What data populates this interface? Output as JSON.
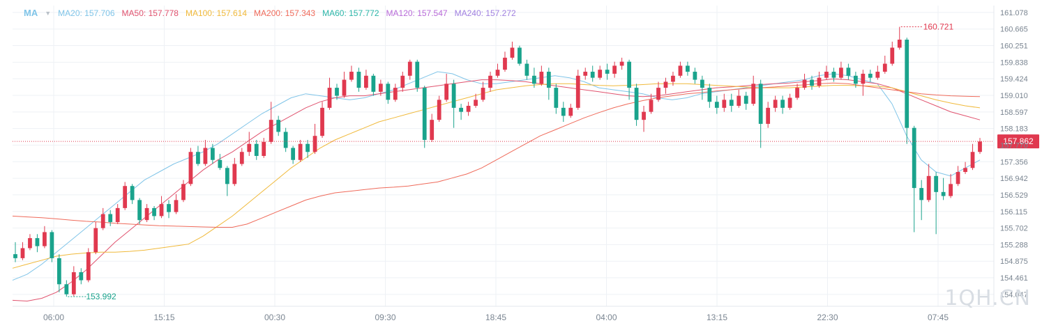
{
  "legend": {
    "title": "MA",
    "items": [
      {
        "label": "MA20: 157.706",
        "color": "#7fc4e8"
      },
      {
        "label": "MA50: 157.778",
        "color": "#e0526e"
      },
      {
        "label": "MA100: 157.614",
        "color": "#f0b93a"
      },
      {
        "label": "MA200: 157.343",
        "color": "#ef6a5a"
      },
      {
        "label": "MA60: 157.772",
        "color": "#2bb6a8"
      },
      {
        "label": "MA120: 157.547",
        "color": "#b86ad8"
      },
      {
        "label": "MA240: 157.272",
        "color": "#a080e0"
      }
    ]
  },
  "watermark": "1QH.CN",
  "chart_data": {
    "type": "candlestick",
    "title": "",
    "ylim": [
      153.75,
      161.25
    ],
    "y_ticks": [
      "161.078",
      "160.665",
      "160.251",
      "159.838",
      "159.424",
      "159.010",
      "158.597",
      "158.183",
      "157.770",
      "157.356",
      "156.942",
      "156.529",
      "156.115",
      "155.702",
      "155.288",
      "154.875",
      "154.461",
      "154.047"
    ],
    "x_ticks": [
      "06:00",
      "15:15",
      "00:30",
      "09:30",
      "18:45",
      "04:00",
      "13:15",
      "22:30",
      "07:45"
    ],
    "current_price": "157.862",
    "high_marker": "160.721",
    "low_marker": "153.992",
    "colors": {
      "up": "#e0394f",
      "down": "#1aa38c",
      "price_line": "#e0394f"
    },
    "candles": [
      [
        155.05,
        154.95,
        155.35,
        154.85
      ],
      [
        154.95,
        155.2,
        155.35,
        154.9
      ],
      [
        155.2,
        155.45,
        155.55,
        155.15
      ],
      [
        155.45,
        155.25,
        155.55,
        155.1
      ],
      [
        155.25,
        155.6,
        155.75,
        155.2
      ],
      [
        155.6,
        154.95,
        155.65,
        154.85
      ],
      [
        154.95,
        154.3,
        155.05,
        154.1
      ],
      [
        154.3,
        154.05,
        154.4,
        153.99
      ],
      [
        154.05,
        154.6,
        154.75,
        154.0
      ],
      [
        154.6,
        154.4,
        154.7,
        154.3
      ],
      [
        154.4,
        155.1,
        155.2,
        154.35
      ],
      [
        155.1,
        155.7,
        155.85,
        155.05
      ],
      [
        155.7,
        156.05,
        156.2,
        155.65
      ],
      [
        156.05,
        155.85,
        156.15,
        155.75
      ],
      [
        155.85,
        156.2,
        156.3,
        155.8
      ],
      [
        156.2,
        156.75,
        156.85,
        156.15
      ],
      [
        156.75,
        156.4,
        156.8,
        156.3
      ],
      [
        156.4,
        155.9,
        156.45,
        155.8
      ],
      [
        155.9,
        156.2,
        156.3,
        155.85
      ],
      [
        156.2,
        156.0,
        156.25,
        155.9
      ],
      [
        156.0,
        156.3,
        156.5,
        155.95
      ],
      [
        156.3,
        156.1,
        156.4,
        155.95
      ],
      [
        156.1,
        156.4,
        156.55,
        156.05
      ],
      [
        156.4,
        156.8,
        156.9,
        156.35
      ],
      [
        156.8,
        157.6,
        157.7,
        156.75
      ],
      [
        157.6,
        157.3,
        157.75,
        157.25
      ],
      [
        157.3,
        157.7,
        157.9,
        157.25
      ],
      [
        157.7,
        157.4,
        157.8,
        157.3
      ],
      [
        157.4,
        157.2,
        157.55,
        157.15
      ],
      [
        157.2,
        156.8,
        157.25,
        156.5
      ],
      [
        156.8,
        157.3,
        157.45,
        156.75
      ],
      [
        157.3,
        157.6,
        157.7,
        157.25
      ],
      [
        157.6,
        157.8,
        158.1,
        157.5
      ],
      [
        157.8,
        157.5,
        157.9,
        157.4
      ],
      [
        157.5,
        157.85,
        157.95,
        157.45
      ],
      [
        157.85,
        158.4,
        158.85,
        157.8
      ],
      [
        158.4,
        158.1,
        158.5,
        158.0
      ],
      [
        158.1,
        157.7,
        158.2,
        157.6
      ],
      [
        157.7,
        157.4,
        157.75,
        157.3
      ],
      [
        157.4,
        157.8,
        157.9,
        157.35
      ],
      [
        157.8,
        157.6,
        157.9,
        157.45
      ],
      [
        157.6,
        158.0,
        158.3,
        157.55
      ],
      [
        158.0,
        158.7,
        158.85,
        157.95
      ],
      [
        158.7,
        159.2,
        159.45,
        158.65
      ],
      [
        159.2,
        159.0,
        159.3,
        158.9
      ],
      [
        159.0,
        159.4,
        159.6,
        158.95
      ],
      [
        159.4,
        159.6,
        159.75,
        159.35
      ],
      [
        159.6,
        159.2,
        159.7,
        159.1
      ],
      [
        159.2,
        159.5,
        159.65,
        159.15
      ],
      [
        159.5,
        159.1,
        159.55,
        159.0
      ],
      [
        159.1,
        159.3,
        159.4,
        159.0
      ],
      [
        159.3,
        158.9,
        159.35,
        158.8
      ],
      [
        158.9,
        159.2,
        159.3,
        158.85
      ],
      [
        159.2,
        159.5,
        159.6,
        159.1
      ],
      [
        159.5,
        159.85,
        159.9,
        159.4
      ],
      [
        159.85,
        159.2,
        159.9,
        159.1
      ],
      [
        159.2,
        157.9,
        159.25,
        157.7
      ],
      [
        157.9,
        158.4,
        158.55,
        157.85
      ],
      [
        158.4,
        158.9,
        159.0,
        158.35
      ],
      [
        158.9,
        159.3,
        159.55,
        158.85
      ],
      [
        159.3,
        158.7,
        159.4,
        158.2
      ],
      [
        158.7,
        158.6,
        158.8,
        158.4
      ],
      [
        158.6,
        158.75,
        158.85,
        158.5
      ],
      [
        158.75,
        158.9,
        159.05,
        158.7
      ],
      [
        158.9,
        159.2,
        159.35,
        158.85
      ],
      [
        159.2,
        159.5,
        159.6,
        159.1
      ],
      [
        159.5,
        159.65,
        159.8,
        159.45
      ],
      [
        159.65,
        159.95,
        160.1,
        159.6
      ],
      [
        159.95,
        160.2,
        160.35,
        159.9
      ],
      [
        160.2,
        159.8,
        160.25,
        159.75
      ],
      [
        159.8,
        159.5,
        159.9,
        159.4
      ],
      [
        159.5,
        159.3,
        159.7,
        159.2
      ],
      [
        159.3,
        159.6,
        159.75,
        159.25
      ],
      [
        159.6,
        159.2,
        159.7,
        158.9
      ],
      [
        159.2,
        158.7,
        159.3,
        158.55
      ],
      [
        158.7,
        158.5,
        158.85,
        158.35
      ],
      [
        158.5,
        158.7,
        158.8,
        158.45
      ],
      [
        158.7,
        159.5,
        159.65,
        158.65
      ],
      [
        159.5,
        159.6,
        159.7,
        159.4
      ],
      [
        159.6,
        159.45,
        159.75,
        159.35
      ],
      [
        159.45,
        159.65,
        159.75,
        159.4
      ],
      [
        159.65,
        159.55,
        159.8,
        159.4
      ],
      [
        159.55,
        159.75,
        159.85,
        159.45
      ],
      [
        159.75,
        159.85,
        159.95,
        159.65
      ],
      [
        159.85,
        159.2,
        159.9,
        158.9
      ],
      [
        159.2,
        158.4,
        159.3,
        158.25
      ],
      [
        158.4,
        158.6,
        158.75,
        158.1
      ],
      [
        158.6,
        158.9,
        159.05,
        158.55
      ],
      [
        158.9,
        159.2,
        159.35,
        158.85
      ],
      [
        159.2,
        159.35,
        159.45,
        159.05
      ],
      [
        159.35,
        159.5,
        159.6,
        159.25
      ],
      [
        159.5,
        159.75,
        159.85,
        159.45
      ],
      [
        159.75,
        159.6,
        159.85,
        159.5
      ],
      [
        159.6,
        159.4,
        159.7,
        159.3
      ],
      [
        159.4,
        159.2,
        159.5,
        158.9
      ],
      [
        159.2,
        158.85,
        159.3,
        158.7
      ],
      [
        158.85,
        158.7,
        159.0,
        158.55
      ],
      [
        158.7,
        158.9,
        159.05,
        158.6
      ],
      [
        158.9,
        158.75,
        159.05,
        158.6
      ],
      [
        158.75,
        159.0,
        159.15,
        158.7
      ],
      [
        159.0,
        158.8,
        159.1,
        158.65
      ],
      [
        158.8,
        159.3,
        159.5,
        158.75
      ],
      [
        159.3,
        158.3,
        159.4,
        157.7
      ],
      [
        158.3,
        158.7,
        158.85,
        158.2
      ],
      [
        158.7,
        158.9,
        159.0,
        158.6
      ],
      [
        158.9,
        158.7,
        159.0,
        158.55
      ],
      [
        158.7,
        158.95,
        159.05,
        158.65
      ],
      [
        158.95,
        159.2,
        159.3,
        158.9
      ],
      [
        159.2,
        159.4,
        159.55,
        159.15
      ],
      [
        159.4,
        159.25,
        159.5,
        159.15
      ],
      [
        159.25,
        159.45,
        159.6,
        159.2
      ],
      [
        159.45,
        159.6,
        159.75,
        159.4
      ],
      [
        159.6,
        159.45,
        159.7,
        159.35
      ],
      [
        159.45,
        159.7,
        159.85,
        159.4
      ],
      [
        159.7,
        159.5,
        159.8,
        159.4
      ],
      [
        159.5,
        159.3,
        159.6,
        159.2
      ],
      [
        159.3,
        159.55,
        159.65,
        159.0
      ],
      [
        159.55,
        159.45,
        159.65,
        159.35
      ],
      [
        159.45,
        159.6,
        159.75,
        159.4
      ],
      [
        159.6,
        159.8,
        160.0,
        159.55
      ],
      [
        159.8,
        160.2,
        160.35,
        159.75
      ],
      [
        160.2,
        160.4,
        160.72,
        160.15
      ],
      [
        160.4,
        158.2,
        160.45,
        157.8
      ],
      [
        158.2,
        156.7,
        158.25,
        155.6
      ],
      [
        156.7,
        156.4,
        156.9,
        155.9
      ],
      [
        156.4,
        157.0,
        157.3,
        156.35
      ],
      [
        157.0,
        156.6,
        157.1,
        155.55
      ],
      [
        156.6,
        156.5,
        156.95,
        156.4
      ],
      [
        156.5,
        156.8,
        157.05,
        156.45
      ],
      [
        156.8,
        157.1,
        157.25,
        156.75
      ],
      [
        157.1,
        157.2,
        157.35,
        157.05
      ],
      [
        157.2,
        157.6,
        157.8,
        157.15
      ],
      [
        157.6,
        157.86,
        157.95,
        157.55
      ]
    ],
    "series": [
      {
        "name": "MA20",
        "color": "#7fc4e8",
        "values": [
          154.4,
          154.55,
          154.8,
          155.1,
          155.4,
          155.7,
          156.0,
          156.3,
          156.6,
          156.9,
          157.1,
          157.3,
          157.45,
          157.6,
          157.8,
          158.05,
          158.3,
          158.55,
          158.75,
          158.95,
          159.05,
          159.0,
          158.95,
          158.9,
          158.95,
          159.05,
          159.15,
          159.3,
          159.45,
          159.6,
          159.55,
          159.4,
          159.3,
          159.3,
          159.35,
          159.4,
          159.45,
          159.5,
          159.45,
          159.35,
          159.2,
          159.15,
          159.1,
          159.05,
          158.95,
          158.9,
          158.95,
          159.05,
          159.1,
          159.15,
          159.2,
          159.25,
          159.3,
          159.35,
          159.4,
          159.5,
          159.55,
          159.5,
          159.4,
          159.3,
          158.8,
          158.0,
          157.4,
          157.1,
          157.0,
          157.2,
          157.4
        ]
      },
      {
        "name": "MA50",
        "color": "#e0526e",
        "values": [
          153.9,
          153.88,
          153.95,
          154.1,
          154.35,
          154.65,
          155.0,
          155.35,
          155.65,
          155.95,
          156.25,
          156.55,
          156.85,
          157.15,
          157.4,
          157.6,
          157.85,
          158.1,
          158.3,
          158.5,
          158.7,
          158.85,
          158.95,
          159.0,
          159.0,
          159.05,
          159.1,
          159.15,
          159.2,
          159.25,
          159.3,
          159.35,
          159.4,
          159.4,
          159.38,
          159.35,
          159.3,
          159.25,
          159.2,
          159.15,
          159.1,
          159.05,
          159.0,
          158.98,
          159.0,
          159.05,
          159.1,
          159.15,
          159.2,
          159.22,
          159.25,
          159.28,
          159.3,
          159.32,
          159.35,
          159.38,
          159.42,
          159.4,
          159.35,
          159.3,
          159.2,
          159.05,
          158.9,
          158.75,
          158.6,
          158.5,
          158.4
        ]
      },
      {
        "name": "MA100",
        "color": "#f0b93a",
        "values": [
          154.7,
          154.8,
          154.9,
          155.0,
          155.05,
          155.08,
          155.1,
          155.1,
          155.12,
          155.15,
          155.2,
          155.25,
          155.3,
          155.5,
          155.75,
          156.0,
          156.3,
          156.6,
          156.9,
          157.2,
          157.45,
          157.7,
          157.9,
          158.05,
          158.2,
          158.35,
          158.45,
          158.55,
          158.65,
          158.75,
          158.85,
          158.95,
          159.05,
          159.15,
          159.2,
          159.25,
          159.28,
          159.3,
          159.3,
          159.28,
          159.26,
          159.25,
          159.26,
          159.28,
          159.3,
          159.3,
          159.3,
          159.28,
          159.26,
          159.24,
          159.22,
          159.2,
          159.2,
          159.2,
          159.22,
          159.24,
          159.26,
          159.26,
          159.25,
          159.24,
          159.2,
          159.1,
          159.0,
          158.9,
          158.82,
          158.75,
          158.7
        ]
      },
      {
        "name": "MA200",
        "color": "#ef6a5a",
        "values": [
          156.0,
          155.98,
          155.96,
          155.93,
          155.9,
          155.87,
          155.85,
          155.82,
          155.8,
          155.78,
          155.76,
          155.75,
          155.74,
          155.73,
          155.72,
          155.72,
          155.8,
          155.95,
          156.1,
          156.25,
          156.4,
          156.5,
          156.58,
          156.62,
          156.66,
          156.7,
          156.72,
          156.75,
          156.8,
          156.85,
          156.95,
          157.05,
          157.2,
          157.4,
          157.6,
          157.8,
          158.0,
          158.15,
          158.3,
          158.45,
          158.58,
          158.7,
          158.8,
          158.88,
          158.95,
          159.0,
          159.05,
          159.08,
          159.12,
          159.15,
          159.18,
          159.2,
          159.22,
          159.25,
          159.27,
          159.3,
          159.32,
          159.3,
          159.25,
          159.2,
          159.15,
          159.1,
          159.05,
          159.02,
          159.0,
          158.99,
          158.98
        ]
      }
    ]
  }
}
